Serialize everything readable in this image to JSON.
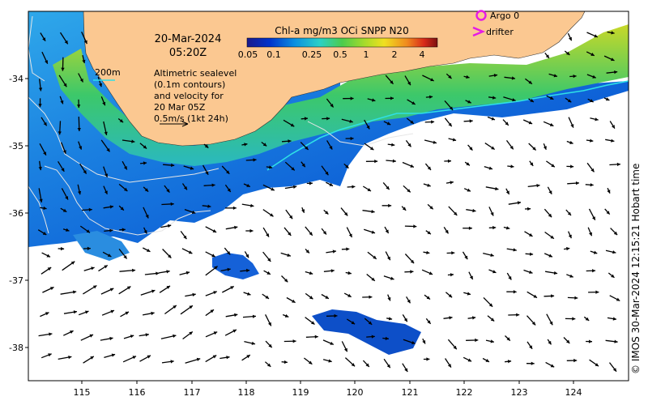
{
  "colorbar": {
    "title": "Chl-a mg/m3 OCi SNPP N20",
    "ticks": [
      "0.05",
      "0.1",
      "0.25",
      "0.5",
      "1",
      "2",
      "4"
    ]
  },
  "overlay": {
    "date": "20-Mar-2024",
    "time": "05:20Z",
    "contour_label": "200m",
    "description": [
      "Altimetric sealevel",
      "(0.1m contours)",
      "and velocity for",
      "20 Mar 05Z",
      "0.5m/s (1kt 24h)"
    ]
  },
  "legend": {
    "argo": "Argo 0",
    "drifter": "drifter"
  },
  "credit": "© IMOS 30-Mar-2024 12:15:21 Hobart time",
  "axes": {
    "lon_ticks": [
      "115",
      "116",
      "117",
      "118",
      "119",
      "120",
      "121",
      "122",
      "123",
      "124"
    ],
    "lat_ticks": [
      "-34",
      "-35",
      "-36",
      "-37",
      "-38"
    ]
  },
  "colors": {
    "land": "#fbc891",
    "shallow_contour": "#2fe0e6",
    "sealevel_contour": "#e6e6e6",
    "argo_marker": "#e51ae5",
    "drifter_marker": "#e51ae5"
  }
}
